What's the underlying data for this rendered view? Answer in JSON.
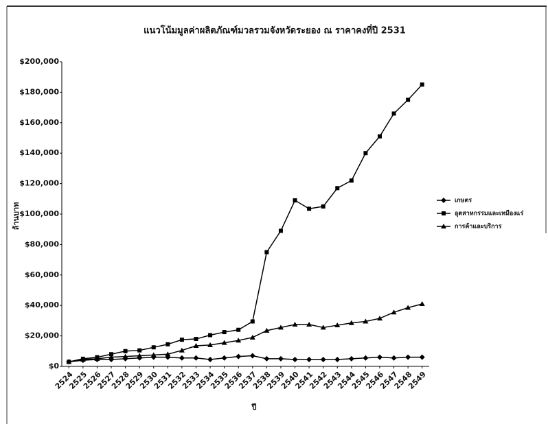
{
  "chart_data": {
    "type": "line",
    "title": "แนวโน้มมูลค่าผลิตภัณฑ์มวลรวมจังหวัดระยอง ณ ราคาคงที่ปี 2531",
    "x_label": "ปี",
    "y_label": "ล้านบาท",
    "categories": [
      "2524",
      "2525",
      "2526",
      "2527",
      "2528",
      "2529",
      "2530",
      "2531",
      "2532",
      "2533",
      "2534",
      "2535",
      "2536",
      "2537",
      "2538",
      "2539",
      "2540",
      "2541",
      "2542",
      "2543",
      "2544",
      "2545",
      "2546",
      "2547",
      "2548",
      "2549"
    ],
    "series": [
      {
        "name": "เกษตร",
        "color": "#000000",
        "marker": "diamond",
        "values": [
          3000,
          4000,
          4500,
          4500,
          5000,
          5500,
          6000,
          6000,
          5500,
          5500,
          4500,
          5500,
          6500,
          7000,
          5000,
          5000,
          4500,
          4500,
          4500,
          4500,
          5000,
          5500,
          6000,
          5500,
          6000,
          6000
        ]
      },
      {
        "name": "อุตสาหกรรมและเหมืองแร่",
        "color": "#000000",
        "marker": "square",
        "values": [
          3000,
          5000,
          6000,
          8000,
          10000,
          10500,
          12500,
          14500,
          17500,
          18000,
          20500,
          22500,
          24000,
          29500,
          75000,
          89000,
          109000,
          103500,
          105000,
          117000,
          122000,
          140000,
          151000,
          166000,
          175000,
          185000
        ]
      },
      {
        "name": "การค้าและบริการ",
        "color": "#000000",
        "marker": "triangle",
        "values": [
          3000,
          4500,
          5000,
          6000,
          6500,
          7000,
          7500,
          8000,
          10500,
          13500,
          14000,
          15500,
          17000,
          19000,
          23500,
          25500,
          27500,
          27500,
          25500,
          27000,
          28500,
          29500,
          31500,
          35500,
          38500,
          41000
        ]
      }
    ],
    "ylim": [
      0,
      200000
    ],
    "yticks": [
      {
        "value": 0,
        "label": "$0"
      },
      {
        "value": 20000,
        "label": "$20,000"
      },
      {
        "value": 40000,
        "label": "$40,000"
      },
      {
        "value": 60000,
        "label": "$60,000"
      },
      {
        "value": 80000,
        "label": "$80,000"
      },
      {
        "value": 100000,
        "label": "$100,000"
      },
      {
        "value": 120000,
        "label": "$120,000"
      },
      {
        "value": 140000,
        "label": "$140,000"
      },
      {
        "value": 160000,
        "label": "$160,000"
      },
      {
        "value": 180000,
        "label": "$180,000"
      },
      {
        "value": 200000,
        "label": "$200,000"
      }
    ],
    "legend": "right",
    "grid": false
  }
}
